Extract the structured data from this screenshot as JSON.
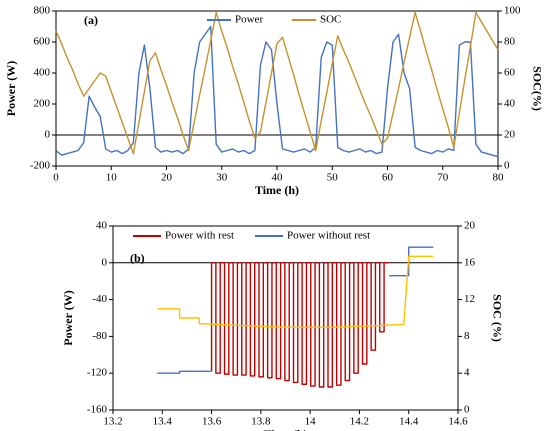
{
  "chart_data": [
    {
      "type": "line",
      "annotation": "(a)",
      "xlabel": "Time (h)",
      "ylabel": "Power (W)",
      "y2label": "SOC(%)",
      "legend": "upper center",
      "xlim": [
        0,
        80
      ],
      "xticks": [
        0,
        10,
        20,
        30,
        40,
        50,
        60,
        70,
        80
      ],
      "ylim": [
        -200,
        800
      ],
      "yticks": [
        -200,
        0,
        200,
        400,
        600,
        800
      ],
      "y2lim": [
        0,
        100
      ],
      "y2ticks": [
        0,
        20,
        40,
        60,
        80,
        100
      ],
      "x": [
        0,
        1,
        2,
        3,
        4,
        5,
        6,
        7,
        8,
        9,
        10,
        11,
        12,
        13,
        14,
        15,
        16,
        17,
        18,
        19,
        20,
        21,
        22,
        23,
        24,
        25,
        26,
        27,
        28,
        29,
        30,
        31,
        32,
        33,
        34,
        35,
        36,
        37,
        38,
        39,
        40,
        41,
        42,
        43,
        44,
        45,
        46,
        47,
        48,
        49,
        50,
        51,
        52,
        53,
        54,
        55,
        56,
        57,
        58,
        59,
        60,
        61,
        62,
        63,
        64,
        65,
        66,
        67,
        68,
        69,
        70,
        71,
        72,
        73,
        74,
        75,
        76,
        77,
        78,
        79,
        80
      ],
      "series": [
        {
          "name": "Power",
          "color": "#4472c4",
          "values": [
            -100,
            -130,
            -120,
            -110,
            -100,
            -50,
            250,
            180,
            120,
            -90,
            -110,
            -100,
            -120,
            -100,
            -50,
            400,
            580,
            300,
            -80,
            -110,
            -100,
            -110,
            -100,
            -120,
            -90,
            400,
            600,
            650,
            700,
            -60,
            -110,
            -100,
            -90,
            -110,
            -100,
            -120,
            -100,
            450,
            600,
            550,
            200,
            -90,
            -100,
            -110,
            -100,
            -90,
            -110,
            -80,
            500,
            600,
            580,
            -80,
            -100,
            -110,
            -100,
            -90,
            -110,
            -100,
            -120,
            -110,
            300,
            600,
            650,
            400,
            300,
            -80,
            -100,
            -110,
            -120,
            -100,
            -110,
            -90,
            -100,
            580,
            600,
            600,
            -60,
            -110,
            -120,
            -130,
            -140
          ]
        },
        {
          "name": "SOC",
          "color": "#c5922e",
          "axis": "y2",
          "values": [
            87,
            79,
            70,
            62,
            53,
            45,
            50,
            55,
            60,
            58,
            48,
            38,
            28,
            18,
            8,
            28,
            48,
            68,
            73,
            62,
            52,
            41,
            31,
            20,
            10,
            28,
            46,
            63,
            81,
            99,
            87,
            76,
            64,
            53,
            41,
            29,
            18,
            22,
            41,
            60,
            79,
            83,
            71,
            59,
            46,
            34,
            22,
            10,
            29,
            47,
            66,
            84,
            75,
            67,
            58,
            49,
            40,
            32,
            23,
            14,
            18,
            34,
            50,
            67,
            83,
            99,
            87,
            74,
            62,
            49,
            37,
            25,
            12,
            34,
            56,
            77,
            99,
            93,
            87,
            81,
            75
          ]
        }
      ]
    },
    {
      "type": "line",
      "annotation": "(b)",
      "xlabel": "Time (h)",
      "ylabel": "Power (W)",
      "y2label": "SOC (%)",
      "legend": "upper left",
      "xlim": [
        13.2,
        14.6
      ],
      "xticks": [
        13.2,
        13.4,
        13.6,
        13.8,
        14,
        14.2,
        14.4,
        14.6
      ],
      "ylim": [
        -160,
        40
      ],
      "yticks": [
        -160,
        -120,
        -80,
        -40,
        0,
        40
      ],
      "y2lim": [
        0,
        20
      ],
      "y2ticks": [
        0,
        4,
        8,
        12,
        16,
        20
      ],
      "series": [
        {
          "name": "Power with rest",
          "color": "#c00000",
          "x": [
            13.6,
            13.6,
            13.6175,
            13.6175,
            13.635,
            13.635,
            13.6525,
            13.6525,
            13.67,
            13.67,
            13.6875,
            13.6875,
            13.705,
            13.705,
            13.7225,
            13.7225,
            13.74,
            13.74,
            13.7575,
            13.7575,
            13.775,
            13.775,
            13.7925,
            13.7925,
            13.81,
            13.81,
            13.8275,
            13.8275,
            13.845,
            13.845,
            13.8625,
            13.8625,
            13.88,
            13.88,
            13.8975,
            13.8975,
            13.915,
            13.915,
            13.9325,
            13.9325,
            13.95,
            13.95,
            13.9675,
            13.9675,
            13.985,
            13.985,
            14.0025,
            14.0025,
            14.02,
            14.02,
            14.0375,
            14.0375,
            14.055,
            14.055,
            14.0725,
            14.0725,
            14.09,
            14.09,
            14.1075,
            14.1075,
            14.125,
            14.125,
            14.1425,
            14.1425,
            14.16,
            14.16,
            14.1775,
            14.1775,
            14.195,
            14.195,
            14.2125,
            14.2125,
            14.23,
            14.23,
            14.2475,
            14.2475,
            14.265,
            14.265,
            14.2825,
            14.2825,
            14.3,
            14.3,
            14.32
          ],
          "values": [
            -118,
            0,
            0,
            -120,
            -120,
            0,
            0,
            -121,
            -121,
            0,
            0,
            -122,
            -122,
            0,
            0,
            -122,
            -122,
            0,
            0,
            -123,
            -123,
            0,
            0,
            -124,
            -124,
            0,
            0,
            -125,
            -125,
            0,
            0,
            -126,
            -126,
            0,
            0,
            -128,
            -128,
            0,
            0,
            -130,
            -130,
            0,
            0,
            -132,
            -132,
            0,
            0,
            -134,
            -134,
            0,
            0,
            -135,
            -135,
            0,
            0,
            -135,
            -135,
            0,
            0,
            -133,
            -133,
            0,
            0,
            -128,
            -128,
            0,
            0,
            -120,
            -120,
            0,
            0,
            -110,
            -110,
            0,
            0,
            -95,
            -95,
            0,
            0,
            -75,
            -75,
            0,
            0
          ]
        },
        {
          "name": "Power without rest",
          "color": "#4472c4",
          "x": [
            13.38,
            13.47,
            13.47,
            13.6,
            14.3,
            14.32,
            14.4,
            14.4,
            14.5
          ],
          "values": [
            -120,
            -120,
            -118,
            -118,
            null,
            -14,
            -14,
            17,
            17
          ]
        },
        {
          "color": "#ffc000",
          "axis": "y2",
          "x": [
            13.38,
            13.47,
            13.47,
            13.55,
            13.55,
            13.7,
            13.9,
            14.1,
            14.3,
            14.38,
            14.4,
            14.5
          ],
          "values": [
            11,
            11,
            10,
            10,
            9.4,
            9.2,
            9.0,
            9.0,
            9.2,
            9.3,
            16.7,
            16.7
          ]
        }
      ]
    }
  ]
}
